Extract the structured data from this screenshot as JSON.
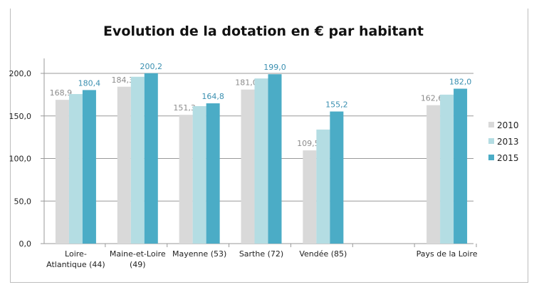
{
  "chart_data": {
    "type": "bar",
    "title": "Evolution de la dotation en € par habitant",
    "categories": [
      "Loire-Atlantique (44)",
      "Maine-et-Loire (49)",
      "Mayenne (53)",
      "Sarthe (72)",
      "Vendée (85)",
      "",
      "Pays de la Loire"
    ],
    "category_lines": [
      [
        "Loire-",
        "Atlantique (44)"
      ],
      [
        "Maine-et-Loire",
        "(49)"
      ],
      [
        "Mayenne (53)"
      ],
      [
        "Sarthe (72)"
      ],
      [
        "Vendée (85)"
      ],
      [],
      [
        "Pays de la Loire"
      ]
    ],
    "series": [
      {
        "name": "2010",
        "color": "#d9d9d9",
        "values": [
          168.9,
          184.3,
          151.3,
          181.0,
          109.5,
          null,
          162.6
        ],
        "labels": [
          "168,9",
          "184,3",
          "151,3",
          "181,0",
          "109,5",
          "",
          "162,6"
        ],
        "label_color": "#8c8c8c"
      },
      {
        "name": "2013",
        "color": "#b4dde3",
        "values": [
          175.7,
          196.0,
          161.5,
          194.0,
          134.0,
          null,
          175.0
        ],
        "labels": []
      },
      {
        "name": "2015",
        "color": "#4bacc6",
        "values": [
          180.4,
          200.2,
          164.8,
          199.0,
          155.2,
          null,
          182.0
        ],
        "labels": [
          "180,4",
          "200,2",
          "164,8",
          "199,0",
          "155,2",
          "",
          "182,0"
        ],
        "label_color": "#3a8fb0"
      }
    ],
    "yticks": [
      "0,0",
      "50,0",
      "100,0",
      "150,0",
      "200,0"
    ],
    "ytick_values": [
      0,
      50,
      100,
      150,
      200
    ],
    "ylim": [
      0,
      200
    ],
    "grid": true,
    "legend": "right"
  }
}
